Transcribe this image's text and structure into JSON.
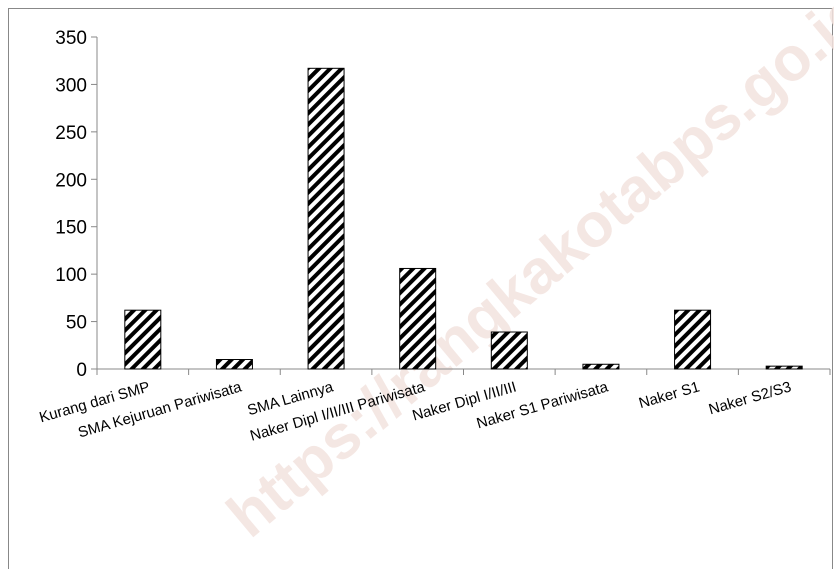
{
  "watermark": "https://rangkakotabps.go.id",
  "colors": {
    "bar_stripe": "#000000",
    "bar_bg": "#ffffff",
    "axis": "#888888",
    "grid_none": "#ffffff",
    "frame": "#888888"
  },
  "chart_data": {
    "type": "bar",
    "title": "",
    "xlabel": "",
    "ylabel": "",
    "ylim": [
      0,
      350
    ],
    "yticks": [
      0,
      50,
      100,
      150,
      200,
      250,
      300,
      350
    ],
    "grid": false,
    "legend": "none",
    "categories": [
      "Kurang dari SMP",
      "SMA Kejuruan Pariwisata",
      "SMA Lainnya",
      "Naker Dipl I/II/III Pariwisata",
      "Naker Dipl I/II/III",
      "Naker S1 Pariwisata",
      "Naker S1",
      "Naker S2/S3"
    ],
    "values": [
      62,
      10,
      317,
      106,
      39,
      5,
      62,
      3
    ]
  }
}
